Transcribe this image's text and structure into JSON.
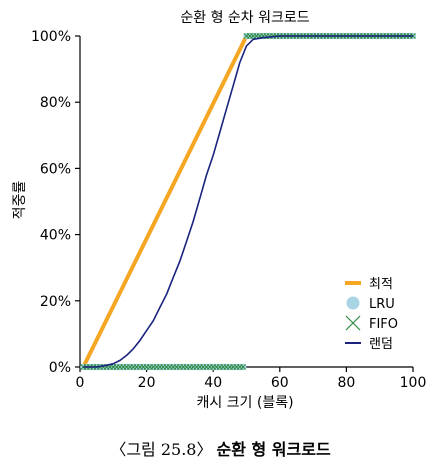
{
  "chart_data": {
    "type": "line",
    "title": "순환 형 순차 워크로드",
    "xlabel": "캐시 크기 (블록)",
    "ylabel": "적중률",
    "xlim": [
      0,
      100
    ],
    "ylim": [
      0,
      100
    ],
    "x_ticks": [
      "0",
      "20",
      "40",
      "60",
      "80",
      "100"
    ],
    "y_ticks": [
      "0%",
      "20%",
      "40%",
      "60%",
      "80%",
      "100%"
    ],
    "grid": false,
    "legend_position": "bottom-right",
    "series": [
      {
        "name": "최적",
        "style": "line",
        "color": "#f5a623",
        "x": [
          1,
          50,
          100
        ],
        "y": [
          0,
          100,
          100
        ]
      },
      {
        "name": "LRU",
        "style": "markers",
        "marker": "circle",
        "color": "#a8d4e6",
        "x": [
          1,
          2,
          3,
          4,
          5,
          6,
          7,
          8,
          9,
          10,
          11,
          12,
          13,
          14,
          15,
          16,
          17,
          18,
          19,
          20,
          21,
          22,
          23,
          24,
          25,
          26,
          27,
          28,
          29,
          30,
          31,
          32,
          33,
          34,
          35,
          36,
          37,
          38,
          39,
          40,
          41,
          42,
          43,
          44,
          45,
          46,
          47,
          48,
          49,
          50,
          51,
          52,
          53,
          54,
          55,
          56,
          57,
          58,
          59,
          60,
          61,
          62,
          63,
          64,
          65,
          66,
          67,
          68,
          69,
          70,
          71,
          72,
          73,
          74,
          75,
          76,
          77,
          78,
          79,
          80,
          81,
          82,
          83,
          84,
          85,
          86,
          87,
          88,
          89,
          90,
          91,
          92,
          93,
          94,
          95,
          96,
          97,
          98,
          99,
          100
        ],
        "y": [
          0,
          0,
          0,
          0,
          0,
          0,
          0,
          0,
          0,
          0,
          0,
          0,
          0,
          0,
          0,
          0,
          0,
          0,
          0,
          0,
          0,
          0,
          0,
          0,
          0,
          0,
          0,
          0,
          0,
          0,
          0,
          0,
          0,
          0,
          0,
          0,
          0,
          0,
          0,
          0,
          0,
          0,
          0,
          0,
          0,
          0,
          0,
          0,
          0,
          100,
          100,
          100,
          100,
          100,
          100,
          100,
          100,
          100,
          100,
          100,
          100,
          100,
          100,
          100,
          100,
          100,
          100,
          100,
          100,
          100,
          100,
          100,
          100,
          100,
          100,
          100,
          100,
          100,
          100,
          100,
          100,
          100,
          100,
          100,
          100,
          100,
          100,
          100,
          100,
          100,
          100,
          100,
          100,
          100,
          100,
          100,
          100,
          100,
          100,
          100
        ]
      },
      {
        "name": "FIFO",
        "style": "markers",
        "marker": "x",
        "color": "#2e8b3e",
        "x": [
          1,
          2,
          3,
          4,
          5,
          6,
          7,
          8,
          9,
          10,
          11,
          12,
          13,
          14,
          15,
          16,
          17,
          18,
          19,
          20,
          21,
          22,
          23,
          24,
          25,
          26,
          27,
          28,
          29,
          30,
          31,
          32,
          33,
          34,
          35,
          36,
          37,
          38,
          39,
          40,
          41,
          42,
          43,
          44,
          45,
          46,
          47,
          48,
          49,
          50,
          51,
          52,
          53,
          54,
          55,
          56,
          57,
          58,
          59,
          60,
          61,
          62,
          63,
          64,
          65,
          66,
          67,
          68,
          69,
          70,
          71,
          72,
          73,
          74,
          75,
          76,
          77,
          78,
          79,
          80,
          81,
          82,
          83,
          84,
          85,
          86,
          87,
          88,
          89,
          90,
          91,
          92,
          93,
          94,
          95,
          96,
          97,
          98,
          99,
          100
        ],
        "y": [
          0,
          0,
          0,
          0,
          0,
          0,
          0,
          0,
          0,
          0,
          0,
          0,
          0,
          0,
          0,
          0,
          0,
          0,
          0,
          0,
          0,
          0,
          0,
          0,
          0,
          0,
          0,
          0,
          0,
          0,
          0,
          0,
          0,
          0,
          0,
          0,
          0,
          0,
          0,
          0,
          0,
          0,
          0,
          0,
          0,
          0,
          0,
          0,
          0,
          100,
          100,
          100,
          100,
          100,
          100,
          100,
          100,
          100,
          100,
          100,
          100,
          100,
          100,
          100,
          100,
          100,
          100,
          100,
          100,
          100,
          100,
          100,
          100,
          100,
          100,
          100,
          100,
          100,
          100,
          100,
          100,
          100,
          100,
          100,
          100,
          100,
          100,
          100,
          100,
          100,
          100,
          100,
          100,
          100,
          100,
          100,
          100,
          100,
          100,
          100
        ]
      },
      {
        "name": "랜덤",
        "style": "line",
        "color": "#1a237e",
        "x": [
          1,
          5,
          8,
          10,
          12,
          14,
          16,
          18,
          20,
          22,
          24,
          26,
          28,
          30,
          32,
          34,
          36,
          38,
          40,
          42,
          44,
          46,
          48,
          50,
          52,
          55,
          60,
          70,
          80,
          90,
          100
        ],
        "y": [
          0,
          0,
          0.5,
          1,
          2,
          3.5,
          5.5,
          8,
          11,
          14,
          18,
          22,
          27,
          32,
          38,
          44,
          51,
          58,
          64,
          71,
          78,
          85,
          92,
          97,
          99,
          99.5,
          100,
          100,
          100,
          100,
          100
        ]
      }
    ]
  },
  "caption": {
    "figure_label": "〈그림 25.8〉",
    "figure_title": "순환 형 워크로드"
  }
}
